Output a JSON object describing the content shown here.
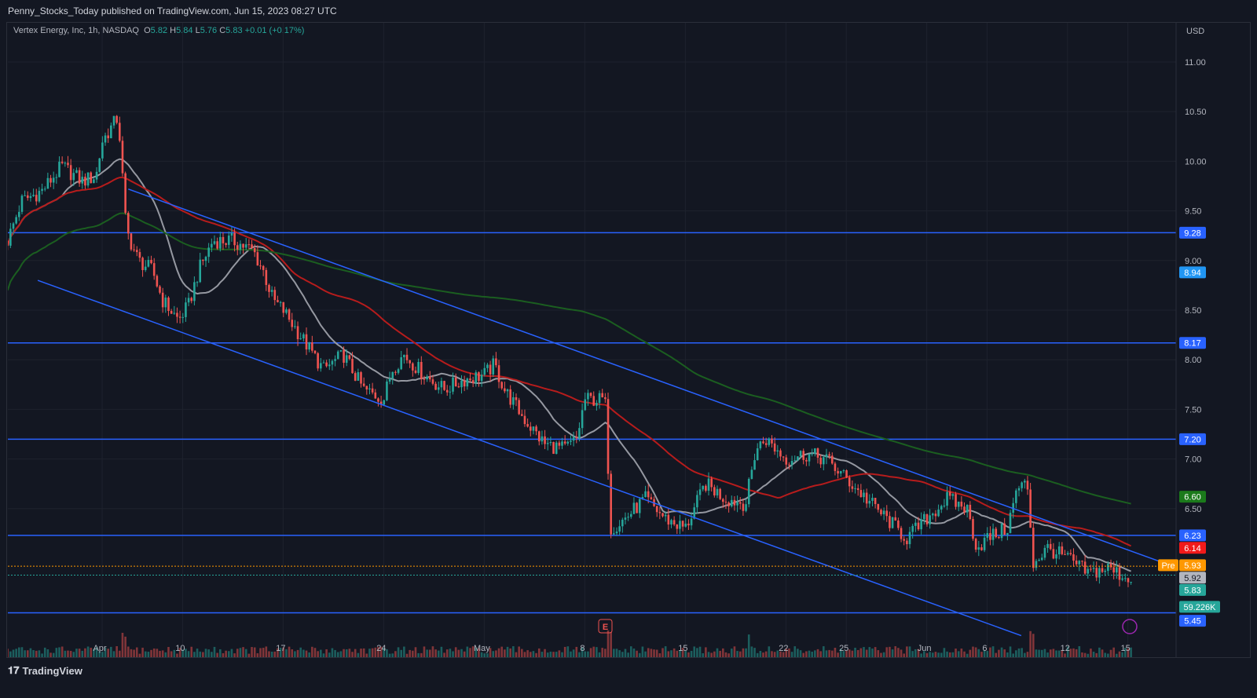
{
  "header": {
    "published": "Penny_Stocks_Today published on TradingView.com, Jun 15, 2023 08:27 UTC"
  },
  "legend": {
    "symbol": "Vertex Energy, Inc, 1h, NASDAQ",
    "o_label": "O",
    "o": "5.82",
    "h_label": "H",
    "h": "5.84",
    "l_label": "L",
    "l": "5.76",
    "c_label": "C",
    "c": "5.83",
    "change": "+0.01 (+0.17%)"
  },
  "footer": {
    "brand": "TradingView"
  },
  "chart_data": {
    "type": "candlestick",
    "currency": "USD",
    "ylim": [
      5.2,
      11.3
    ],
    "y_ticks": [
      "11.00",
      "10.50",
      "10.00",
      "9.50",
      "9.00",
      "8.50",
      "8.00",
      "7.50",
      "7.00",
      "6.50"
    ],
    "x_ticks": [
      {
        "label": "Apr",
        "day": 0
      },
      {
        "label": "10",
        "day": 4
      },
      {
        "label": "17",
        "day": 9
      },
      {
        "label": "24",
        "day": 14
      },
      {
        "label": "May",
        "day": 19
      },
      {
        "label": "8",
        "day": 24
      },
      {
        "label": "15",
        "day": 29
      },
      {
        "label": "22",
        "day": 34
      },
      {
        "label": "25",
        "day": 37
      },
      {
        "label": "Jun",
        "day": 41
      },
      {
        "label": "6",
        "day": 44
      },
      {
        "label": "12",
        "day": 48
      },
      {
        "label": "15",
        "day": 51
      }
    ],
    "price_path": [
      [
        -4.7,
        9.2
      ],
      [
        -4,
        9.6
      ],
      [
        -3,
        9.7
      ],
      [
        -2,
        9.95
      ],
      [
        -1,
        9.8
      ],
      [
        -0.3,
        9.85
      ],
      [
        0,
        10.2
      ],
      [
        0.8,
        10.45
      ],
      [
        1.2,
        9.3
      ],
      [
        1.8,
        9.0
      ],
      [
        2.5,
        8.9
      ],
      [
        3,
        8.6
      ],
      [
        3.8,
        8.4
      ],
      [
        4.3,
        8.55
      ],
      [
        4.8,
        8.9
      ],
      [
        5.5,
        9.2
      ],
      [
        6.5,
        9.2
      ],
      [
        7.5,
        9.1
      ],
      [
        8,
        8.9
      ],
      [
        8.5,
        8.6
      ],
      [
        9,
        8.5
      ],
      [
        10,
        8.2
      ],
      [
        11,
        7.9
      ],
      [
        12,
        8.05
      ],
      [
        13,
        7.7
      ],
      [
        14,
        7.6
      ],
      [
        14.4,
        7.9
      ],
      [
        15,
        8.05
      ],
      [
        16,
        7.85
      ],
      [
        17,
        7.7
      ],
      [
        18,
        7.8
      ],
      [
        19,
        7.85
      ],
      [
        19.5,
        7.95
      ],
      [
        20,
        7.7
      ],
      [
        21,
        7.4
      ],
      [
        22,
        7.15
      ],
      [
        23,
        7.1
      ],
      [
        23.6,
        7.2
      ],
      [
        24,
        7.6
      ],
      [
        25,
        7.6
      ],
      [
        25.3,
        6.3
      ],
      [
        26,
        6.4
      ],
      [
        27,
        6.6
      ],
      [
        28,
        6.4
      ],
      [
        29,
        6.3
      ],
      [
        30,
        6.75
      ],
      [
        31,
        6.6
      ],
      [
        32,
        6.55
      ],
      [
        32.5,
        7.1
      ],
      [
        33,
        7.2
      ],
      [
        34,
        7.0
      ],
      [
        35,
        7.05
      ],
      [
        36,
        7.0
      ],
      [
        37,
        6.8
      ],
      [
        38,
        6.6
      ],
      [
        39,
        6.4
      ],
      [
        40,
        6.2
      ],
      [
        41,
        6.4
      ],
      [
        42,
        6.6
      ],
      [
        43,
        6.5
      ],
      [
        43.5,
        6.1
      ],
      [
        44,
        6.2
      ],
      [
        45,
        6.3
      ],
      [
        45.5,
        6.7
      ],
      [
        46,
        6.75
      ],
      [
        46.3,
        5.95
      ],
      [
        47,
        6.1
      ],
      [
        48,
        6.0
      ],
      [
        49,
        5.85
      ],
      [
        50,
        5.9
      ],
      [
        51,
        5.8
      ],
      [
        51.3,
        5.83
      ]
    ],
    "horizontal_levels": [
      9.28,
      8.17,
      7.2,
      6.23,
      5.45
    ],
    "trend_lines": [
      {
        "from": [
          1.3,
          9.72
        ],
        "to": [
          53.1,
          5.93
        ]
      },
      {
        "from": [
          -3.2,
          8.8
        ],
        "to": [
          45.7,
          5.22
        ]
      }
    ],
    "moving_averages": [
      {
        "name": "short",
        "color": "#9598a1",
        "period": 20
      },
      {
        "name": "medium",
        "color": "#b71c1c",
        "period": 60
      },
      {
        "name": "long",
        "color": "#1b5e20",
        "period": 200
      }
    ],
    "axis_labels": [
      {
        "text": "9.28",
        "price": 9.28,
        "bg": "#2962ff",
        "fg": "#ffffff"
      },
      {
        "text": "8.94",
        "price": 8.94,
        "bg": "#2196f3",
        "fg": "#ffffff"
      },
      {
        "text": "8.17",
        "price": 8.17,
        "bg": "#2962ff",
        "fg": "#ffffff"
      },
      {
        "text": "7.20",
        "price": 7.2,
        "bg": "#2962ff",
        "fg": "#ffffff"
      },
      {
        "text": "6.60",
        "price": 6.6,
        "bg": "#1b7a1b",
        "fg": "#ffffff"
      },
      {
        "text": "6.23",
        "price": 6.23,
        "bg": "#2962ff",
        "fg": "#ffffff"
      },
      {
        "text": "6.14",
        "price": 6.14,
        "bg": "#f21a1a",
        "fg": "#ffffff"
      },
      {
        "text": "5.93",
        "price": 5.93,
        "bg": "#ff9800",
        "fg": "#ffffff"
      },
      {
        "text": "5.92",
        "price": 5.82,
        "bg": "#b2b5be",
        "fg": "#131722"
      },
      {
        "text": "5.83",
        "price": 5.7,
        "bg": "#26a69a",
        "fg": "#ffffff"
      },
      {
        "text": "59.226K",
        "price": 5.51,
        "bg": "#26a69a",
        "fg": "#ffffff"
      },
      {
        "text": "5.45",
        "price": 5.37,
        "bg": "#2962ff",
        "fg": "#ffffff"
      }
    ],
    "premarket_label": "Pre",
    "earnings_marker": "E",
    "colors": {
      "up": "#26a69a",
      "down": "#ef5350",
      "bg": "#131722"
    }
  }
}
